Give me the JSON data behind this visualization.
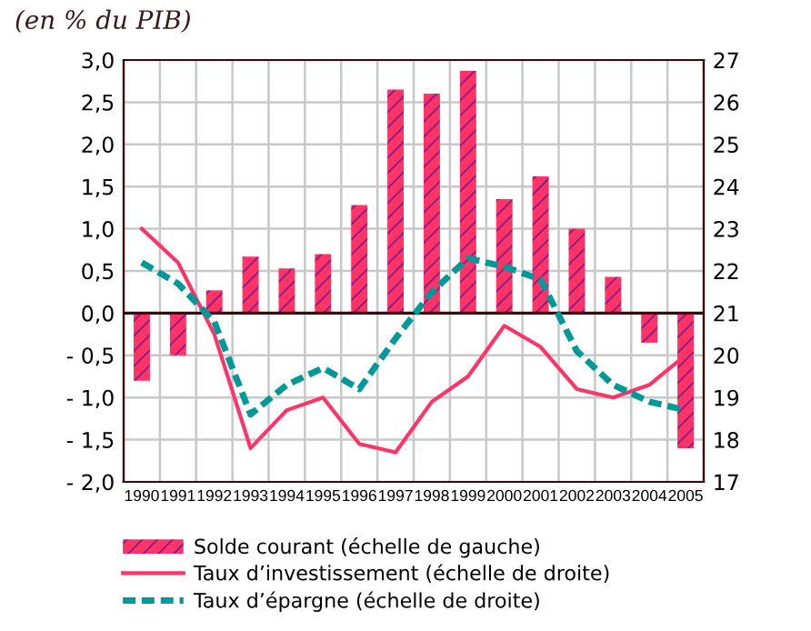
{
  "chart_data": {
    "type": "bar",
    "title": "(en % du PIB)",
    "categories": [
      "1990",
      "1991",
      "1992",
      "1993",
      "1994",
      "1995",
      "1996",
      "1997",
      "1998",
      "1999",
      "2000",
      "2001",
      "2002",
      "2003",
      "2004",
      "2005"
    ],
    "series": [
      {
        "name": "Solde courant (échelle de gauche)",
        "color": "#ff3366",
        "values": [
          -0.8,
          -0.5,
          0.27,
          0.67,
          0.53,
          0.7,
          1.28,
          2.65,
          2.6,
          2.87,
          1.35,
          1.62,
          1.0,
          0.43,
          -0.35,
          -1.6
        ]
      },
      {
        "name": "Taux d’investissement (échelle de droite)",
        "type": "line",
        "axis": "y2",
        "line_style": "solid",
        "color": "#ff3366",
        "values": [
          23.0,
          22.2,
          20.5,
          17.8,
          18.7,
          19.0,
          17.9,
          17.7,
          18.9,
          19.5,
          20.7,
          20.2,
          19.2,
          19.0,
          19.3,
          20.0
        ]
      },
      {
        "name": "Taux d’épargne (échelle de droite)",
        "type": "line",
        "axis": "y2",
        "line_style": "dashed",
        "color": "#009999",
        "values": [
          22.2,
          21.7,
          20.8,
          18.6,
          19.3,
          19.7,
          19.2,
          20.4,
          21.5,
          22.3,
          22.1,
          21.8,
          20.1,
          19.3,
          18.9,
          18.7
        ]
      }
    ],
    "ylim": [
      -2,
      3
    ],
    "yticks": [
      {
        "value": -2,
        "label": "- 2,0"
      },
      {
        "value": -1.5,
        "label": "- 1,5"
      },
      {
        "value": -1,
        "label": "- 1,0"
      },
      {
        "value": -0.5,
        "label": "- 0,5"
      },
      {
        "value": 0,
        "label": "0,0"
      },
      {
        "value": 0.5,
        "label": "0,5"
      },
      {
        "value": 1,
        "label": "1,0"
      },
      {
        "value": 1.5,
        "label": "1,5"
      },
      {
        "value": 2,
        "label": "2,0"
      },
      {
        "value": 2.5,
        "label": "2,5"
      },
      {
        "value": 3,
        "label": "3,0"
      }
    ],
    "y2lim": [
      17,
      27
    ],
    "y2ticks": [
      17,
      18,
      19,
      20,
      21,
      22,
      23,
      24,
      25,
      26,
      27
    ],
    "grid": true,
    "legend": "bottom"
  }
}
